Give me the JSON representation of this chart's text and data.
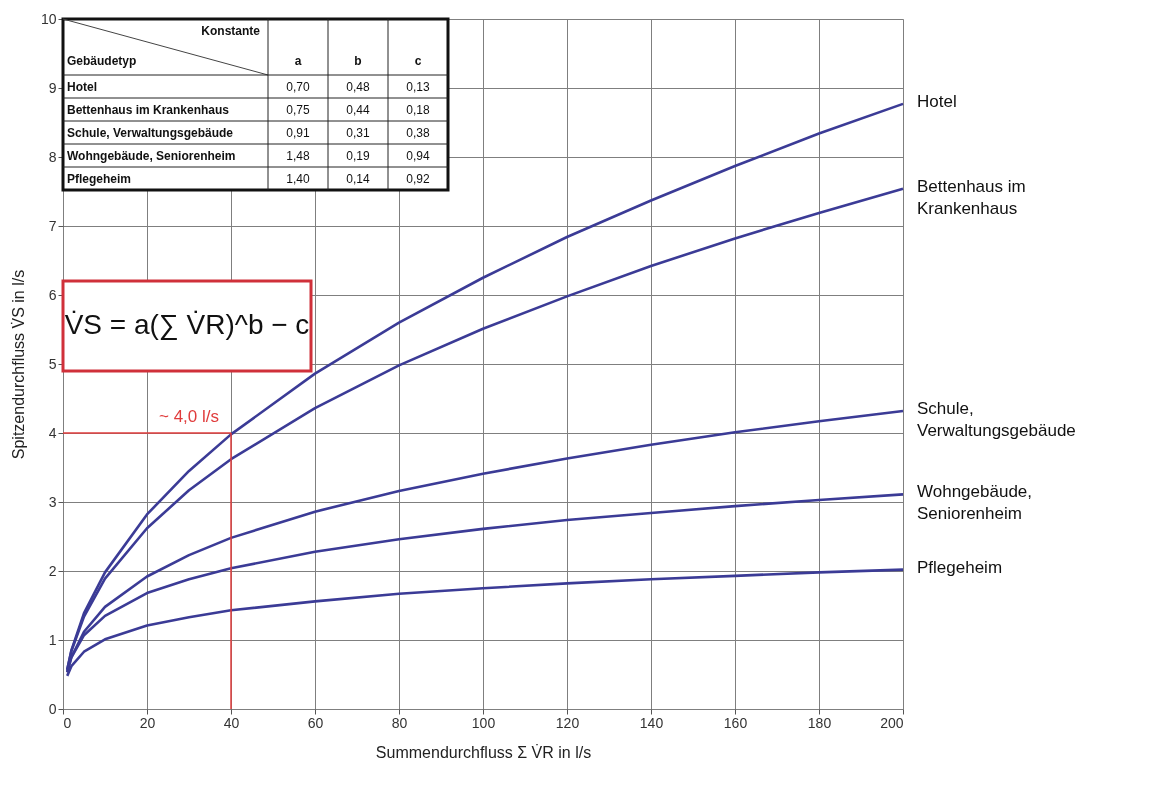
{
  "chart_data": {
    "type": "line",
    "xlabel": "Summendurchfluss Σ V̇R in l/s",
    "ylabel": "Spitzendurchfluss V̇S in l/s",
    "x": [
      1,
      2,
      5,
      10,
      20,
      30,
      40,
      60,
      80,
      100,
      120,
      140,
      160,
      180,
      200
    ],
    "series": [
      {
        "name": "Hotel",
        "color": "#3b3b96",
        "values": [
          0.57,
          0.85,
          1.39,
          1.98,
          2.82,
          3.45,
          3.98,
          4.86,
          5.6,
          6.25,
          6.84,
          7.37,
          7.87,
          8.34,
          8.77
        ]
      },
      {
        "name": "Bettenhaus im Krankenhaus",
        "color": "#3b3b96",
        "values": [
          0.57,
          0.84,
          1.34,
          1.89,
          2.62,
          3.17,
          3.62,
          4.36,
          4.98,
          5.51,
          5.98,
          6.42,
          6.82,
          7.19,
          7.54
        ]
      },
      {
        "name": "Schule, Verwaltungsgebäude",
        "color": "#3b3b96",
        "values": [
          0.53,
          0.75,
          1.12,
          1.48,
          1.92,
          2.23,
          2.48,
          2.86,
          3.16,
          3.41,
          3.63,
          3.83,
          4.01,
          4.17,
          4.32
        ]
      },
      {
        "name": "Wohngebäude, Seniorenheim",
        "color": "#3b3b96",
        "values": [
          0.54,
          0.75,
          1.07,
          1.35,
          1.68,
          1.88,
          2.04,
          2.28,
          2.46,
          2.61,
          2.74,
          2.84,
          2.94,
          3.03,
          3.11
        ]
      },
      {
        "name": "Pflegeheim",
        "color": "#3b3b96",
        "values": [
          0.48,
          0.62,
          0.83,
          1.01,
          1.21,
          1.33,
          1.43,
          1.56,
          1.67,
          1.75,
          1.82,
          1.88,
          1.93,
          1.98,
          2.02
        ]
      }
    ],
    "xlim": [
      0,
      200
    ],
    "ylim": [
      0,
      10
    ],
    "xticks": [
      0,
      20,
      40,
      60,
      80,
      100,
      120,
      140,
      160,
      180,
      200
    ],
    "yticks": [
      0,
      1,
      2,
      3,
      4,
      5,
      6,
      7,
      8,
      9,
      10
    ],
    "grid": true,
    "legend": false,
    "ref_lines": [
      {
        "axis": "x",
        "value": 40,
        "color": "#e03c3c"
      },
      {
        "axis": "y",
        "value": 4,
        "color": "#e03c3c"
      }
    ],
    "annotations": [
      "Konstante",
      "Gebäudetyp",
      "a",
      "b",
      "c",
      "Hotel",
      "0,70",
      "0,48",
      "0,13",
      "Bettenhaus im Krankenhaus",
      "0,75",
      "0,44",
      "0,18",
      "Schule, Verwaltungsgebäude",
      "0,91",
      "0,31",
      "0,38",
      "Wohngebäude, Seniorenheim",
      "1,48",
      "0,19",
      "0,94",
      "Pflegeheim",
      "1,40",
      "0,14",
      "0,92",
      "V̇S = a(∑ V̇R)^b − c",
      {
        "text": "~ 4,0 l/s",
        "x": 30,
        "y": 4
      }
    ]
  }
}
